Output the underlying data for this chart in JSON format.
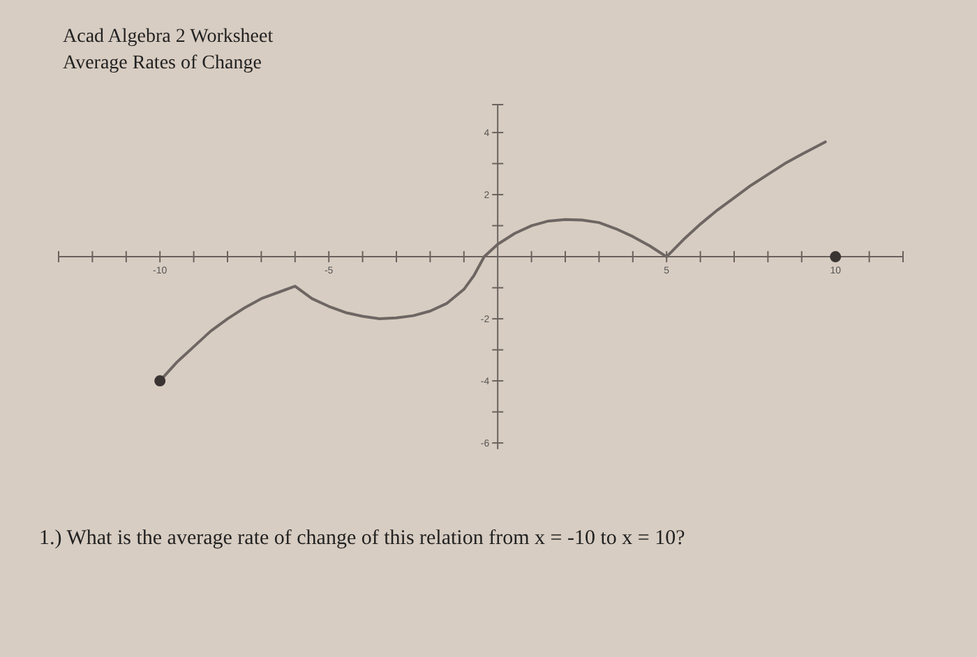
{
  "chart_data": {
    "type": "line",
    "title": "Acad Algebra 2 Worksheet",
    "subtitle": "Average Rates of Change",
    "annotations": [
      "1.) What is the average rate of change of this relation from x = -10 to x = 10?"
    ],
    "xlim": [
      -13,
      12
    ],
    "ylim": [
      -6.2,
      4.9
    ],
    "xticks": [
      {
        "value": -13,
        "label": null
      },
      {
        "value": -12,
        "label": null
      },
      {
        "value": -11,
        "label": null
      },
      -10,
      {
        "value": -9,
        "label": null
      },
      {
        "value": -8,
        "label": null
      },
      {
        "value": -7,
        "label": null
      },
      {
        "value": -6,
        "label": null
      },
      -5,
      {
        "value": -4,
        "label": null
      },
      {
        "value": -3,
        "label": null
      },
      {
        "value": -2,
        "label": null
      },
      {
        "value": -1,
        "label": null
      },
      {
        "value": 1,
        "label": null
      },
      {
        "value": 2,
        "label": null
      },
      {
        "value": 3,
        "label": null
      },
      {
        "value": 4,
        "label": null
      },
      5,
      {
        "value": 6,
        "label": null
      },
      {
        "value": 7,
        "label": null
      },
      {
        "value": 8,
        "label": null
      },
      {
        "value": 9,
        "label": null
      },
      10,
      {
        "value": 11,
        "label": null
      },
      {
        "value": 12,
        "label": null
      }
    ],
    "yticks": [
      -6,
      {
        "value": -5,
        "label": null
      },
      -4,
      {
        "value": -3,
        "label": null
      },
      -2,
      {
        "value": -1,
        "label": null
      },
      {
        "value": 1,
        "label": null
      },
      2,
      {
        "value": 3,
        "label": null
      },
      4,
      {
        "value": 4.9,
        "label": null
      }
    ],
    "series": [
      {
        "color": "#6e6663",
        "x": [
          -10,
          -9.5,
          -9,
          -8.5,
          -8,
          -7.5,
          -7,
          -6.5,
          -6,
          -5.5,
          -5,
          -4.5,
          -4,
          -3.5,
          -3,
          -2.5,
          -2,
          -1.5,
          -1,
          -0.7,
          -0.4,
          0,
          0.5,
          1,
          1.5,
          2,
          2.5,
          3,
          3.5,
          4,
          4.5,
          5,
          5.5,
          6,
          6.5,
          7,
          7.5,
          8,
          8.5,
          9,
          9.7
        ],
        "values": [
          -4,
          -3.4,
          -2.9,
          -2.4,
          -2,
          -1.65,
          -1.35,
          -1.15,
          -0.95,
          -1.35,
          -1.6,
          -1.8,
          -1.92,
          -2,
          -1.97,
          -1.9,
          -1.75,
          -1.5,
          -1.05,
          -0.6,
          0,
          0.4,
          0.75,
          1,
          1.15,
          1.2,
          1.18,
          1.1,
          0.9,
          0.65,
          0.35,
          0,
          0.55,
          1.05,
          1.5,
          1.9,
          2.3,
          2.65,
          3,
          3.3,
          3.7
        ]
      },
      {
        "type": "scatter",
        "color": "#3a3433",
        "marker": "circle",
        "x": [
          -10,
          10
        ],
        "values": [
          -4,
          0
        ]
      }
    ]
  }
}
